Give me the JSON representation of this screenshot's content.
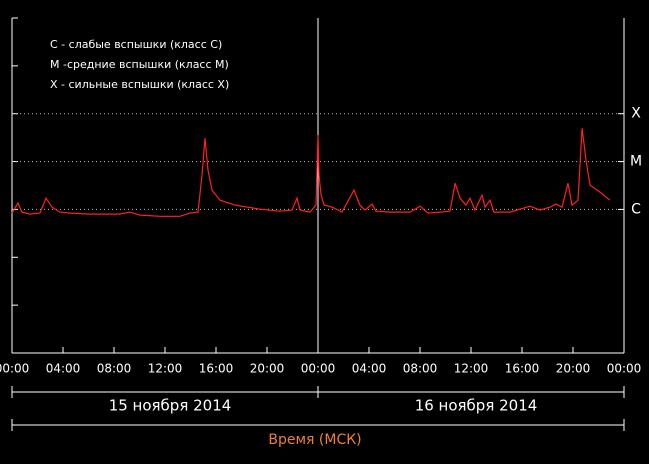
{
  "chart_data": {
    "type": "line",
    "annotations": [
      "C - слабые вспышки (класс C)",
      "M -средние вспышки (класс M)",
      "X - сильные вспышки (класс X)"
    ],
    "day_labels": [
      "15 ноября 2014",
      "16 ноября 2014"
    ],
    "x_label": "Время (МСК)",
    "log_scale": true,
    "grid": true,
    "xlim": [
      0,
      48
    ],
    "xticks": [
      {
        "value": 0,
        "label": "00:00"
      },
      {
        "value": 4,
        "label": "04:00"
      },
      {
        "value": 8,
        "label": "08:00"
      },
      {
        "value": 12,
        "label": "12:00"
      },
      {
        "value": 16,
        "label": "16:00"
      },
      {
        "value": 20,
        "label": "20:00"
      },
      {
        "value": 24,
        "label": "00:00"
      },
      {
        "value": 28,
        "label": "04:00"
      },
      {
        "value": 32,
        "label": "08:00"
      },
      {
        "value": 36,
        "label": "12:00"
      },
      {
        "value": 40,
        "label": "16:00"
      },
      {
        "value": 44,
        "label": "20:00"
      },
      {
        "value": 48,
        "label": "00:00"
      }
    ],
    "ylim": [
      1e-09,
      0.01
    ],
    "yticks": [
      {
        "value": 1e-06,
        "label": "C"
      },
      {
        "value": 1e-05,
        "label": "M"
      },
      {
        "value": 0.0001,
        "label": "X"
      }
    ],
    "minor_yticks": [
      1e-09,
      1e-08,
      1e-07,
      1e-06,
      1e-05,
      0.0001,
      0.001,
      0.01
    ],
    "series": [
      {
        "color": "#ff2020",
        "x": [
          0,
          0.47,
          0.78,
          1.41,
          2.2,
          2.67,
          3.14,
          3.76,
          4.55,
          6.12,
          6.9,
          8.47,
          9.25,
          10.04,
          11.61,
          13.18,
          13.96,
          14.59,
          14.9,
          15.14,
          15.37,
          15.69,
          16.31,
          17.49,
          19.45,
          21.02,
          21.96,
          22.35,
          22.59,
          23.37,
          23.84,
          24.0,
          24.08,
          24.24,
          24.47,
          25.1,
          25.88,
          26.82,
          27.29,
          27.69,
          28.24,
          28.55,
          29.65,
          31.22,
          32.0,
          32.63,
          33.57,
          34.35,
          34.75,
          35.14,
          35.61,
          35.92,
          36.31,
          36.86,
          37.1,
          37.49,
          37.8,
          39.06,
          40.63,
          41.41,
          42.2,
          42.67,
          43.14,
          43.61,
          43.92,
          44.39,
          44.71,
          45.02,
          45.33,
          46.12,
          46.9
        ],
        "values": [
          8.4e-07,
          1.36e-06,
          8.8e-07,
          8e-07,
          8.4e-07,
          1.72e-06,
          1.12e-06,
          8.8e-07,
          8.4e-07,
          8e-07,
          8e-07,
          8e-07,
          8.8e-07,
          7.6e-07,
          7.2e-07,
          7.2e-07,
          8.4e-07,
          8.8e-07,
          5.2e-06,
          3.08e-05,
          6.6e-06,
          2.53e-06,
          1.56e-06,
          1.23e-06,
          1.01e-06,
          9.2e-07,
          9.7e-07,
          1.72e-06,
          9.7e-07,
          8.8e-07,
          1.23e-06,
          3.56e-05,
          5.2e-06,
          1.99e-06,
          1.23e-06,
          1.12e-06,
          8.8e-07,
          2.53e-06,
          1.23e-06,
          9.7e-07,
          1.29e-06,
          9.2e-07,
          8.8e-07,
          8.8e-07,
          1.17e-06,
          8.4e-07,
          8.8e-07,
          9.2e-07,
          3.54e-06,
          1.72e-06,
          1.23e-06,
          1.72e-06,
          9.7e-07,
          1.99e-06,
          1.12e-06,
          1.56e-06,
          8.8e-07,
          8.8e-07,
          1.17e-06,
          9.7e-07,
          1.12e-06,
          1.29e-06,
          1.12e-06,
          3.54e-06,
          1.23e-06,
          1.56e-06,
          4.98e-05,
          1.07e-05,
          3.21e-06,
          2.3e-06,
          1.56e-06
        ]
      }
    ]
  }
}
